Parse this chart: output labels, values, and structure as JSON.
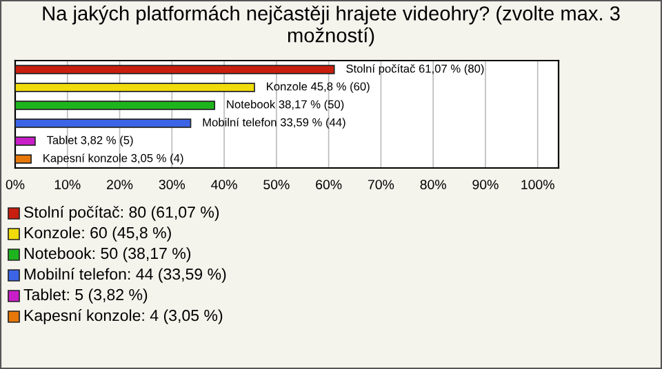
{
  "chart_data": {
    "type": "bar",
    "orientation": "horizontal",
    "title": "Na jakých platformách nejčastěji hrajete videohry? (zvolte max. 3 možností)",
    "categories": [
      null,
      null,
      null,
      null,
      null,
      null
    ],
    "values": [
      61.07,
      45.8,
      38.17,
      33.59,
      3.82,
      3.05
    ],
    "colors": [
      "#c81e0f",
      "#f0dc0a",
      "#1eb41e",
      "#3c64e6",
      "#c81ec8",
      "#e6780a"
    ],
    "value_labels": [
      "Stolní počítač 61,07 % (80)",
      "Konzole 45,8 % (60)",
      "Notebook 38,17 % (50)",
      "Mobilní telefon 33,59 % (44)",
      "Tablet 3,82 % (5)",
      "Kapesní konzole 3,05 % (4)"
    ],
    "xlim": [
      0,
      104
    ],
    "xticks": [
      {
        "value": 0,
        "label": "0%"
      },
      {
        "value": 10,
        "label": "10%"
      },
      {
        "value": 20,
        "label": "20%"
      },
      {
        "value": 30,
        "label": "30%"
      },
      {
        "value": 40,
        "label": "40%"
      },
      {
        "value": 50,
        "label": "50%"
      },
      {
        "value": 60,
        "label": "60%"
      },
      {
        "value": 70,
        "label": "70%"
      },
      {
        "value": 80,
        "label": "80%"
      },
      {
        "value": 90,
        "label": "90%"
      },
      {
        "value": 100,
        "label": "100%"
      }
    ],
    "grid": "x",
    "annotations": [
      "Stolní počítač: 80 (61,07 %)",
      "Konzole: 60 (45,8 %)",
      "Notebook: 50 (38,17 %)",
      "Mobilní telefon: 44 (33,59 %)",
      "Tablet: 5 (3,82 %)",
      "Kapesní konzole: 4 (3,05 %)"
    ]
  }
}
